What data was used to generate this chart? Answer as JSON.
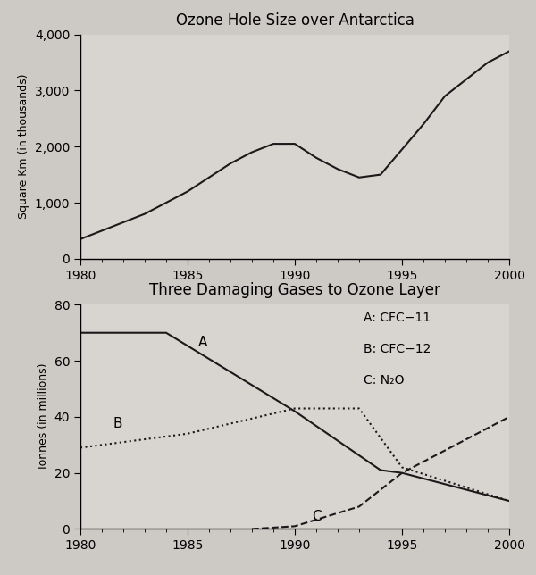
{
  "chart1": {
    "title": "Ozone Hole Size over Antarctica",
    "ylabel": "Square Km (in thousands)",
    "years": [
      1980,
      1981,
      1982,
      1983,
      1984,
      1985,
      1986,
      1987,
      1988,
      1989,
      1990,
      1991,
      1992,
      1993,
      1994,
      1995,
      1996,
      1997,
      1998,
      1999,
      2000
    ],
    "values": [
      350,
      500,
      650,
      800,
      1000,
      1200,
      1450,
      1700,
      1900,
      2050,
      2050,
      1800,
      1600,
      1450,
      1500,
      1950,
      2400,
      2900,
      3200,
      3500,
      3700
    ],
    "ylim": [
      0,
      4000
    ],
    "yticks": [
      0,
      1000,
      2000,
      3000,
      4000
    ],
    "ytick_labels": [
      "0",
      "1,000",
      "2,000",
      "3,000",
      "4,000"
    ],
    "xlim": [
      1980,
      2000
    ],
    "xticks": [
      1980,
      1985,
      1990,
      1995,
      2000
    ],
    "bg_color": "#d8d4d0",
    "line_color": "#1a1a1a"
  },
  "chart2": {
    "title": "Three Damaging Gases to Ozone Layer",
    "ylabel": "Tonnes (in millions)",
    "years_A": [
      1980,
      1984,
      1990,
      1994,
      1995,
      2000
    ],
    "vals_A": [
      70,
      70,
      42,
      21,
      20,
      10
    ],
    "years_B": [
      1980,
      1985,
      1990,
      1993,
      1995,
      2000
    ],
    "vals_B": [
      29,
      34,
      43,
      43,
      22,
      10
    ],
    "years_C": [
      1988,
      1990,
      1993,
      1995,
      2000
    ],
    "vals_C": [
      0,
      1,
      8,
      20,
      40
    ],
    "ylim": [
      0,
      80
    ],
    "yticks": [
      0,
      20,
      40,
      60,
      80
    ],
    "ytick_labels": [
      "0",
      "20",
      "40",
      "60",
      "80"
    ],
    "xlim": [
      1980,
      2000
    ],
    "xticks": [
      1980,
      1985,
      1990,
      1995,
      2000
    ],
    "bg_color": "#d8d4d0",
    "line_color": "#1a1a1a",
    "label_A": "A",
    "label_B": "B",
    "label_C": "C",
    "legend_A": "A: CFC−11",
    "legend_B": "B: CFC−12",
    "legend_C": "C: N₂O"
  },
  "bg_color": "#cdc9c5"
}
